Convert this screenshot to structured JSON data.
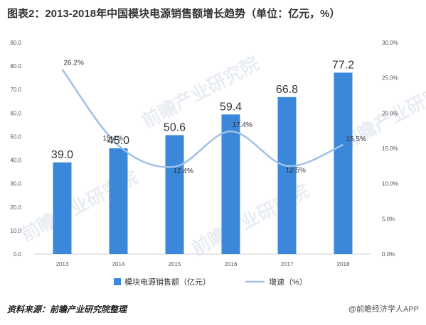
{
  "title": "图表2：2013-2018年中国模块电源销售额增长趋势（单位：亿元，%）",
  "source": "资料来源：前瞻产业研究院整理",
  "credit": "@前瞻经济学人APP",
  "watermark": "前瞻产业研究院",
  "colors": {
    "bar": "#3b87d9",
    "line": "#9fc1e8",
    "axis_text": "#555555",
    "grid": "#e6e6e6"
  },
  "chart_data": {
    "type": "bar",
    "categories": [
      "2013",
      "2014",
      "2015",
      "2016",
      "2017",
      "2018"
    ],
    "series": [
      {
        "name": "模块电源销售额（亿元）",
        "type": "bar",
        "axis": "left",
        "values": [
          39.0,
          45.0,
          50.6,
          59.4,
          66.8,
          77.2
        ],
        "labels": [
          "39.0",
          "45.0",
          "50.6",
          "59.4",
          "66.8",
          "77.2"
        ]
      },
      {
        "name": "增速（%）",
        "type": "line",
        "axis": "right",
        "values": [
          26.2,
          15.4,
          12.4,
          17.4,
          12.5,
          15.5
        ],
        "labels": [
          "26.2%",
          "15.4%",
          "12.4%",
          "17.4%",
          "12.5%",
          "15.5%"
        ]
      }
    ],
    "y_left": {
      "ticks": [
        "0.0",
        "10.0",
        "20.0",
        "30.0",
        "40.0",
        "50.0",
        "60.0",
        "70.0",
        "80.0",
        "90.0"
      ],
      "ylim": [
        0,
        90
      ]
    },
    "y_right": {
      "ticks": [
        "0.0%",
        "5.0%",
        "10.0%",
        "15.0%",
        "20.0%",
        "25.0%",
        "30.0%"
      ],
      "ylim": [
        0,
        30
      ]
    },
    "legend_position": "bottom-center",
    "grid": false
  }
}
